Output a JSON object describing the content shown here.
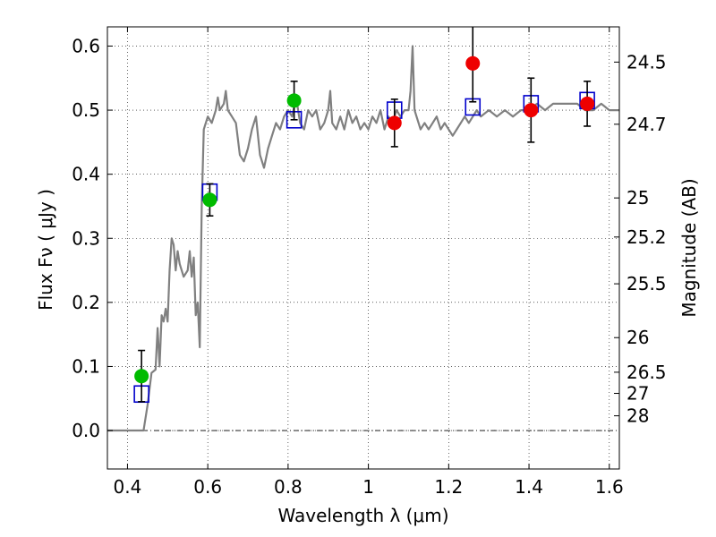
{
  "chart_data": {
    "type": "scatter",
    "xlabel": "Wavelength  λ (μm)",
    "ylabel": "Flux  Fν  ( μJy )",
    "ylabel_right": "Magnitude (AB)",
    "xlim": [
      0.35,
      1.625
    ],
    "ylim": [
      -0.06,
      0.63
    ],
    "x_ticks": [
      0.4,
      0.6,
      0.8,
      1.0,
      1.2,
      1.4,
      1.6
    ],
    "x_tick_labels": [
      "0.4",
      "0.6",
      "0.8",
      "1",
      "1.2",
      "1.4",
      "1.6"
    ],
    "y_ticks": [
      0.0,
      0.1,
      0.2,
      0.3,
      0.4,
      0.5,
      0.6
    ],
    "y_tick_labels": [
      "0.0",
      "0.1",
      "0.2",
      "0.3",
      "0.4",
      "0.5",
      "0.6"
    ],
    "right_ticks": [
      {
        "label": "24.5",
        "flux": 0.575
      },
      {
        "label": "24.7",
        "flux": 0.478
      },
      {
        "label": "25",
        "flux": 0.363
      },
      {
        "label": "25.2",
        "flux": 0.302
      },
      {
        "label": "25.5",
        "flux": 0.229
      },
      {
        "label": "26",
        "flux": 0.145
      },
      {
        "label": "26.5",
        "flux": 0.091
      },
      {
        "label": "27",
        "flux": 0.058
      },
      {
        "label": "28",
        "flux": 0.023
      }
    ],
    "grid": true,
    "reference_line_y": 0.0,
    "series": [
      {
        "style": "sed-model",
        "color": "#808080",
        "points": [
          [
            0.35,
            0.0
          ],
          [
            0.43,
            0.0
          ],
          [
            0.44,
            0.0
          ],
          [
            0.45,
            0.04
          ],
          [
            0.46,
            0.09
          ],
          [
            0.47,
            0.095
          ],
          [
            0.475,
            0.16
          ],
          [
            0.48,
            0.1
          ],
          [
            0.485,
            0.18
          ],
          [
            0.49,
            0.17
          ],
          [
            0.495,
            0.19
          ],
          [
            0.5,
            0.17
          ],
          [
            0.505,
            0.25
          ],
          [
            0.51,
            0.3
          ],
          [
            0.515,
            0.29
          ],
          [
            0.52,
            0.25
          ],
          [
            0.525,
            0.28
          ],
          [
            0.53,
            0.26
          ],
          [
            0.54,
            0.24
          ],
          [
            0.55,
            0.25
          ],
          [
            0.555,
            0.28
          ],
          [
            0.56,
            0.24
          ],
          [
            0.565,
            0.27
          ],
          [
            0.57,
            0.18
          ],
          [
            0.575,
            0.2
          ],
          [
            0.58,
            0.13
          ],
          [
            0.585,
            0.35
          ],
          [
            0.59,
            0.47
          ],
          [
            0.6,
            0.49
          ],
          [
            0.61,
            0.48
          ],
          [
            0.62,
            0.5
          ],
          [
            0.625,
            0.52
          ],
          [
            0.63,
            0.5
          ],
          [
            0.64,
            0.51
          ],
          [
            0.645,
            0.53
          ],
          [
            0.65,
            0.5
          ],
          [
            0.66,
            0.49
          ],
          [
            0.67,
            0.48
          ],
          [
            0.68,
            0.43
          ],
          [
            0.69,
            0.42
          ],
          [
            0.7,
            0.44
          ],
          [
            0.71,
            0.47
          ],
          [
            0.72,
            0.49
          ],
          [
            0.73,
            0.43
          ],
          [
            0.74,
            0.41
          ],
          [
            0.75,
            0.44
          ],
          [
            0.76,
            0.46
          ],
          [
            0.77,
            0.48
          ],
          [
            0.78,
            0.47
          ],
          [
            0.79,
            0.49
          ],
          [
            0.8,
            0.5
          ],
          [
            0.81,
            0.49
          ],
          [
            0.82,
            0.52
          ],
          [
            0.83,
            0.48
          ],
          [
            0.84,
            0.47
          ],
          [
            0.85,
            0.5
          ],
          [
            0.86,
            0.49
          ],
          [
            0.87,
            0.5
          ],
          [
            0.88,
            0.47
          ],
          [
            0.89,
            0.48
          ],
          [
            0.9,
            0.5
          ],
          [
            0.905,
            0.53
          ],
          [
            0.91,
            0.48
          ],
          [
            0.92,
            0.47
          ],
          [
            0.93,
            0.49
          ],
          [
            0.94,
            0.47
          ],
          [
            0.95,
            0.5
          ],
          [
            0.96,
            0.48
          ],
          [
            0.97,
            0.49
          ],
          [
            0.98,
            0.47
          ],
          [
            0.99,
            0.48
          ],
          [
            1.0,
            0.47
          ],
          [
            1.01,
            0.49
          ],
          [
            1.02,
            0.48
          ],
          [
            1.03,
            0.5
          ],
          [
            1.04,
            0.47
          ],
          [
            1.05,
            0.49
          ],
          [
            1.06,
            0.48
          ],
          [
            1.07,
            0.5
          ],
          [
            1.08,
            0.49
          ],
          [
            1.09,
            0.5
          ],
          [
            1.1,
            0.5
          ],
          [
            1.105,
            0.53
          ],
          [
            1.11,
            0.6
          ],
          [
            1.115,
            0.5
          ],
          [
            1.12,
            0.49
          ],
          [
            1.13,
            0.47
          ],
          [
            1.14,
            0.48
          ],
          [
            1.15,
            0.47
          ],
          [
            1.16,
            0.48
          ],
          [
            1.17,
            0.49
          ],
          [
            1.18,
            0.47
          ],
          [
            1.19,
            0.48
          ],
          [
            1.2,
            0.47
          ],
          [
            1.21,
            0.46
          ],
          [
            1.22,
            0.47
          ],
          [
            1.23,
            0.48
          ],
          [
            1.24,
            0.49
          ],
          [
            1.25,
            0.48
          ],
          [
            1.26,
            0.49
          ],
          [
            1.27,
            0.5
          ],
          [
            1.28,
            0.49
          ],
          [
            1.3,
            0.5
          ],
          [
            1.32,
            0.49
          ],
          [
            1.34,
            0.5
          ],
          [
            1.36,
            0.49
          ],
          [
            1.38,
            0.5
          ],
          [
            1.4,
            0.5
          ],
          [
            1.42,
            0.51
          ],
          [
            1.44,
            0.5
          ],
          [
            1.46,
            0.51
          ],
          [
            1.48,
            0.51
          ],
          [
            1.5,
            0.51
          ],
          [
            1.52,
            0.51
          ],
          [
            1.54,
            0.5
          ],
          [
            1.56,
            0.5
          ],
          [
            1.58,
            0.51
          ],
          [
            1.6,
            0.5
          ],
          [
            1.625,
            0.5
          ]
        ]
      },
      {
        "style": "model-photometry",
        "color": "#0000cc",
        "points": [
          [
            0.435,
            0.057
          ],
          [
            0.605,
            0.372
          ],
          [
            0.815,
            0.485
          ],
          [
            1.065,
            0.5
          ],
          [
            1.26,
            0.505
          ],
          [
            1.405,
            0.51
          ],
          [
            1.545,
            0.515
          ]
        ]
      },
      {
        "style": "observed-green",
        "color": "#00bb00",
        "points": [
          [
            0.435,
            0.085,
            0.04
          ],
          [
            0.605,
            0.36,
            0.025
          ],
          [
            0.815,
            0.515,
            0.03
          ]
        ]
      },
      {
        "style": "observed-red",
        "color": "#ee0000",
        "points": [
          [
            1.065,
            0.48,
            0.037
          ],
          [
            1.26,
            0.573,
            0.06
          ],
          [
            1.405,
            0.5,
            0.05
          ],
          [
            1.545,
            0.51,
            0.035
          ]
        ]
      }
    ]
  }
}
